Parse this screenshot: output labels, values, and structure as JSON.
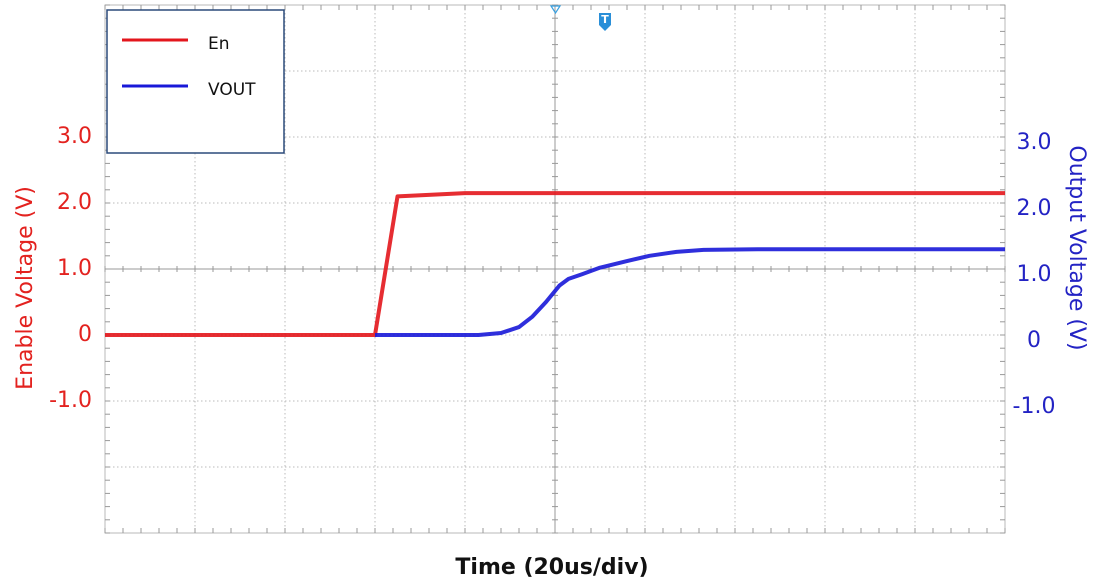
{
  "chart_data": {
    "type": "line",
    "x_label": "Time  (20us/div)",
    "y_label": "Enable Voltage   (V)",
    "y2_label": "Output Voltage   (V)",
    "trigger_marker": "T",
    "xlim": [
      0,
      200
    ],
    "ylim": [
      -3,
      5
    ],
    "yticks": [
      {
        "value": -1,
        "label": "-1.0"
      },
      0,
      {
        "value": 1,
        "label": "1.0"
      },
      {
        "value": 2,
        "label": "2.0"
      },
      {
        "value": 3,
        "label": "3.0"
      }
    ],
    "y2lim": [
      -3,
      5
    ],
    "y2ticks": [
      {
        "value": -1,
        "label": "-1.0"
      },
      0,
      {
        "value": 1,
        "label": "1.0"
      },
      {
        "value": 2,
        "label": "2.0"
      },
      {
        "value": 3,
        "label": "3.0"
      }
    ],
    "grid": true,
    "legend": "upper left",
    "series": [
      {
        "name": "En",
        "color": "#e3161c",
        "axis": "y",
        "x": [
          0,
          60,
          65,
          80,
          120,
          160,
          200
        ],
        "values": [
          0,
          0,
          2.1,
          2.15,
          2.15,
          2.15,
          2.15
        ]
      },
      {
        "name": "VOUT",
        "color": "#1818d8",
        "axis": "y2",
        "x": [
          60,
          83,
          88,
          92,
          95,
          98,
          101,
          103,
          106,
          110,
          116,
          121,
          127,
          133,
          145,
          160,
          200
        ],
        "values": [
          0,
          0,
          0.03,
          0.12,
          0.28,
          0.5,
          0.75,
          0.85,
          0.92,
          1.02,
          1.12,
          1.2,
          1.26,
          1.29,
          1.3,
          1.3,
          1.3
        ]
      }
    ]
  }
}
